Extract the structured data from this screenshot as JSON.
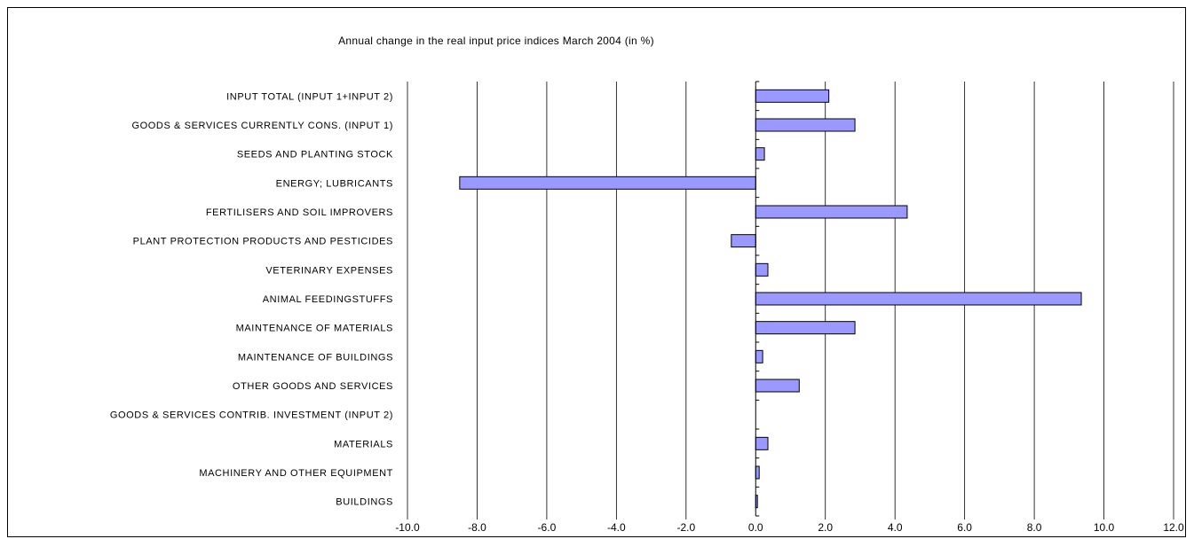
{
  "chart_data": {
    "type": "bar",
    "orientation": "horizontal",
    "title": "Annual change in the real input price indices March 2004 (in %)",
    "xlabel": "",
    "ylabel": "",
    "xlim": [
      -10,
      12
    ],
    "x_ticks": [
      "-10.0",
      "-8.0",
      "-6.0",
      "-4.0",
      "-2.0",
      "0.0",
      "2.0",
      "4.0",
      "6.0",
      "8.0",
      "10.0",
      "12.0"
    ],
    "grid": "vertical",
    "legend": "none",
    "bar_color": "#9999ff",
    "categories": [
      "INPUT TOTAL  (INPUT 1+INPUT 2)",
      "GOODS & SERVICES CURRENTLY CONS. (INPUT 1)",
      "SEEDS AND PLANTING STOCK",
      "ENERGY; LUBRICANTS",
      "FERTILISERS AND SOIL IMPROVERS",
      "PLANT PROTECTION PRODUCTS AND PESTICIDES",
      "VETERINARY EXPENSES",
      "ANIMAL FEEDINGSTUFFS",
      "MAINTENANCE OF MATERIALS",
      "MAINTENANCE OF BUILDINGS",
      "OTHER GOODS AND SERVICES",
      "GOODS & SERVICES CONTRIB. INVESTMENT (INPUT 2)",
      "MATERIALS",
      "MACHINERY AND OTHER EQUIPMENT",
      "BUILDINGS"
    ],
    "values": [
      2.1,
      2.85,
      0.25,
      -8.5,
      4.35,
      -0.7,
      0.35,
      9.35,
      2.85,
      0.2,
      1.25,
      0.0,
      0.35,
      0.1,
      0.05
    ]
  }
}
